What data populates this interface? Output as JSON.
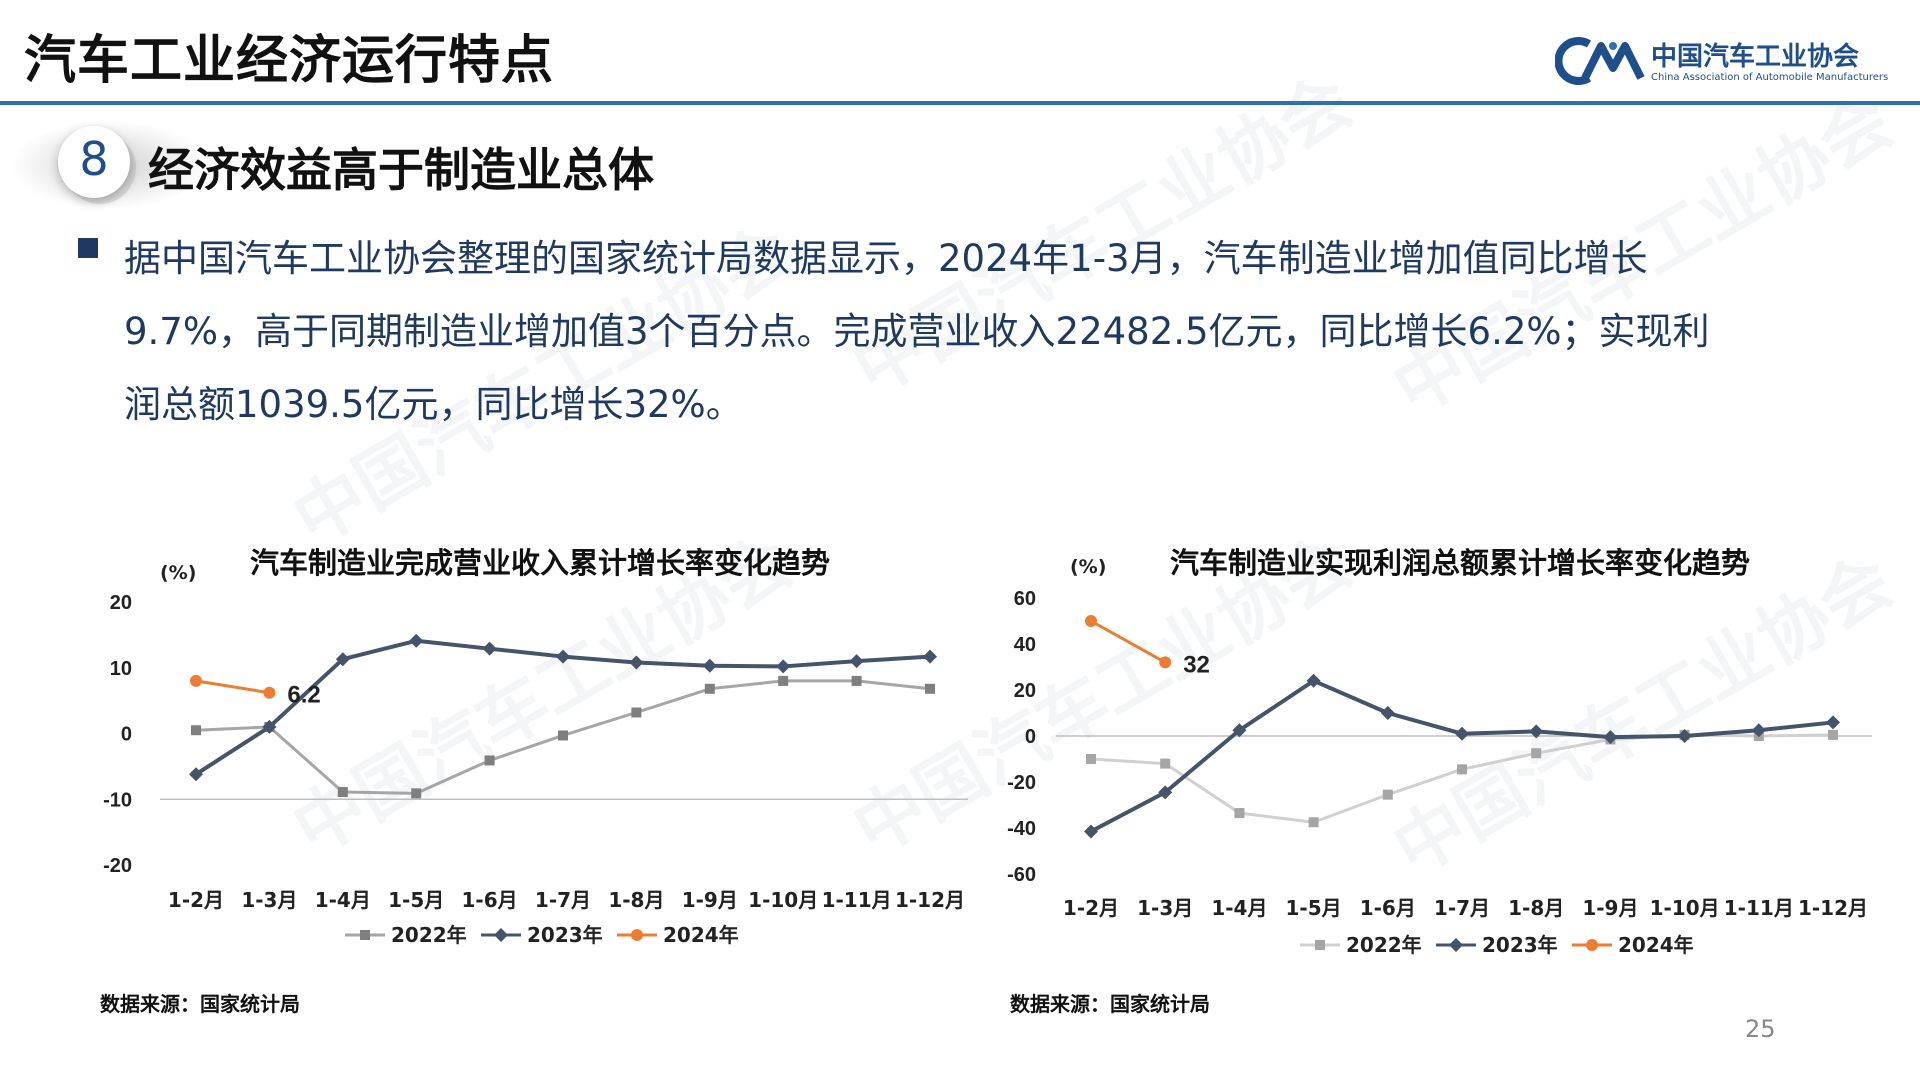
{
  "header": {
    "title": "汽车工业经济运行特点",
    "logo_cn": "中国汽车工业协会",
    "logo_en": "China Association of Automobile Manufacturers",
    "accent": "#2f6fb5"
  },
  "section": {
    "number": "8",
    "title": "经济效益高于制造业总体"
  },
  "body": {
    "lines": [
      "据中国汽车工业协会整理的国家统计局数据显示，2024年1-3月，汽车制造业增加值同比增长",
      "9.7%，高于同期制造业增加值3个百分点。完成营业收入22482.5亿元，同比增长6.2%；实现利",
      "润总额1039.5亿元，同比增长32%。"
    ]
  },
  "chart_data": [
    {
      "type": "line",
      "title": "汽车制造业完成营业收入累计增长率变化趋势",
      "ylabel": "(%)",
      "categories": [
        "1-2月",
        "1-3月",
        "1-4月",
        "1-5月",
        "1-6月",
        "1-7月",
        "1-8月",
        "1-9月",
        "1-10月",
        "1-11月",
        "1-12月"
      ],
      "ylim": [
        -20,
        20
      ],
      "yticks": [
        20,
        10,
        0,
        -10,
        -20
      ],
      "series": [
        {
          "name": "2022年",
          "color": "#7f7f7f",
          "line_color": "#a6a6a6",
          "marker": "square",
          "values": [
            0.5,
            1.0,
            -8.9,
            -9.1,
            -4.1,
            -0.3,
            3.2,
            6.8,
            8.0,
            8.0,
            6.8
          ]
        },
        {
          "name": "2023年",
          "color": "#44546a",
          "line_color": "#44546a",
          "marker": "diamond",
          "values": [
            -6.2,
            1.0,
            11.3,
            14.1,
            12.9,
            11.7,
            10.8,
            10.3,
            10.2,
            11.0,
            11.7
          ]
        },
        {
          "name": "2024年",
          "color": "#ed7d31",
          "line_color": "#ed7d31",
          "marker": "circle",
          "values": [
            8.0,
            6.2,
            null,
            null,
            null,
            null,
            null,
            null,
            null,
            null,
            null
          ]
        }
      ],
      "data_labels": [
        {
          "series": "2024年",
          "index": 1,
          "text": "6.2"
        }
      ],
      "source": "数据来源：国家统计局"
    },
    {
      "type": "line",
      "title": "汽车制造业实现利润总额累计增长率变化趋势",
      "ylabel": "(%)",
      "categories": [
        "1-2月",
        "1-3月",
        "1-4月",
        "1-5月",
        "1-6月",
        "1-7月",
        "1-8月",
        "1-9月",
        "1-10月",
        "1-11月",
        "1-12月"
      ],
      "ylim": [
        -60,
        60
      ],
      "yticks": [
        60,
        40,
        20,
        0,
        -20,
        -40,
        -60
      ],
      "series": [
        {
          "name": "2022年",
          "color": "#a5a5a5",
          "line_color": "#d0d0d0",
          "marker": "square",
          "values": [
            -10.0,
            -12.0,
            -33.5,
            -37.5,
            -25.5,
            -14.5,
            -7.5,
            -1.5,
            0.5,
            0.0,
            0.5
          ]
        },
        {
          "name": "2023年",
          "color": "#44546a",
          "line_color": "#44546a",
          "marker": "diamond",
          "values": [
            -41.5,
            -24.5,
            2.5,
            24.0,
            10.0,
            1.0,
            2.0,
            -0.5,
            0.0,
            2.5,
            5.9
          ]
        },
        {
          "name": "2024年",
          "color": "#ed7d31",
          "line_color": "#ed7d31",
          "marker": "circle",
          "values": [
            50.0,
            32.0,
            null,
            null,
            null,
            null,
            null,
            null,
            null,
            null,
            null
          ]
        }
      ],
      "data_labels": [
        {
          "series": "2024年",
          "index": 1,
          "text": "32"
        }
      ],
      "source": "数据来源：国家统计局"
    }
  ],
  "page_number": "25"
}
